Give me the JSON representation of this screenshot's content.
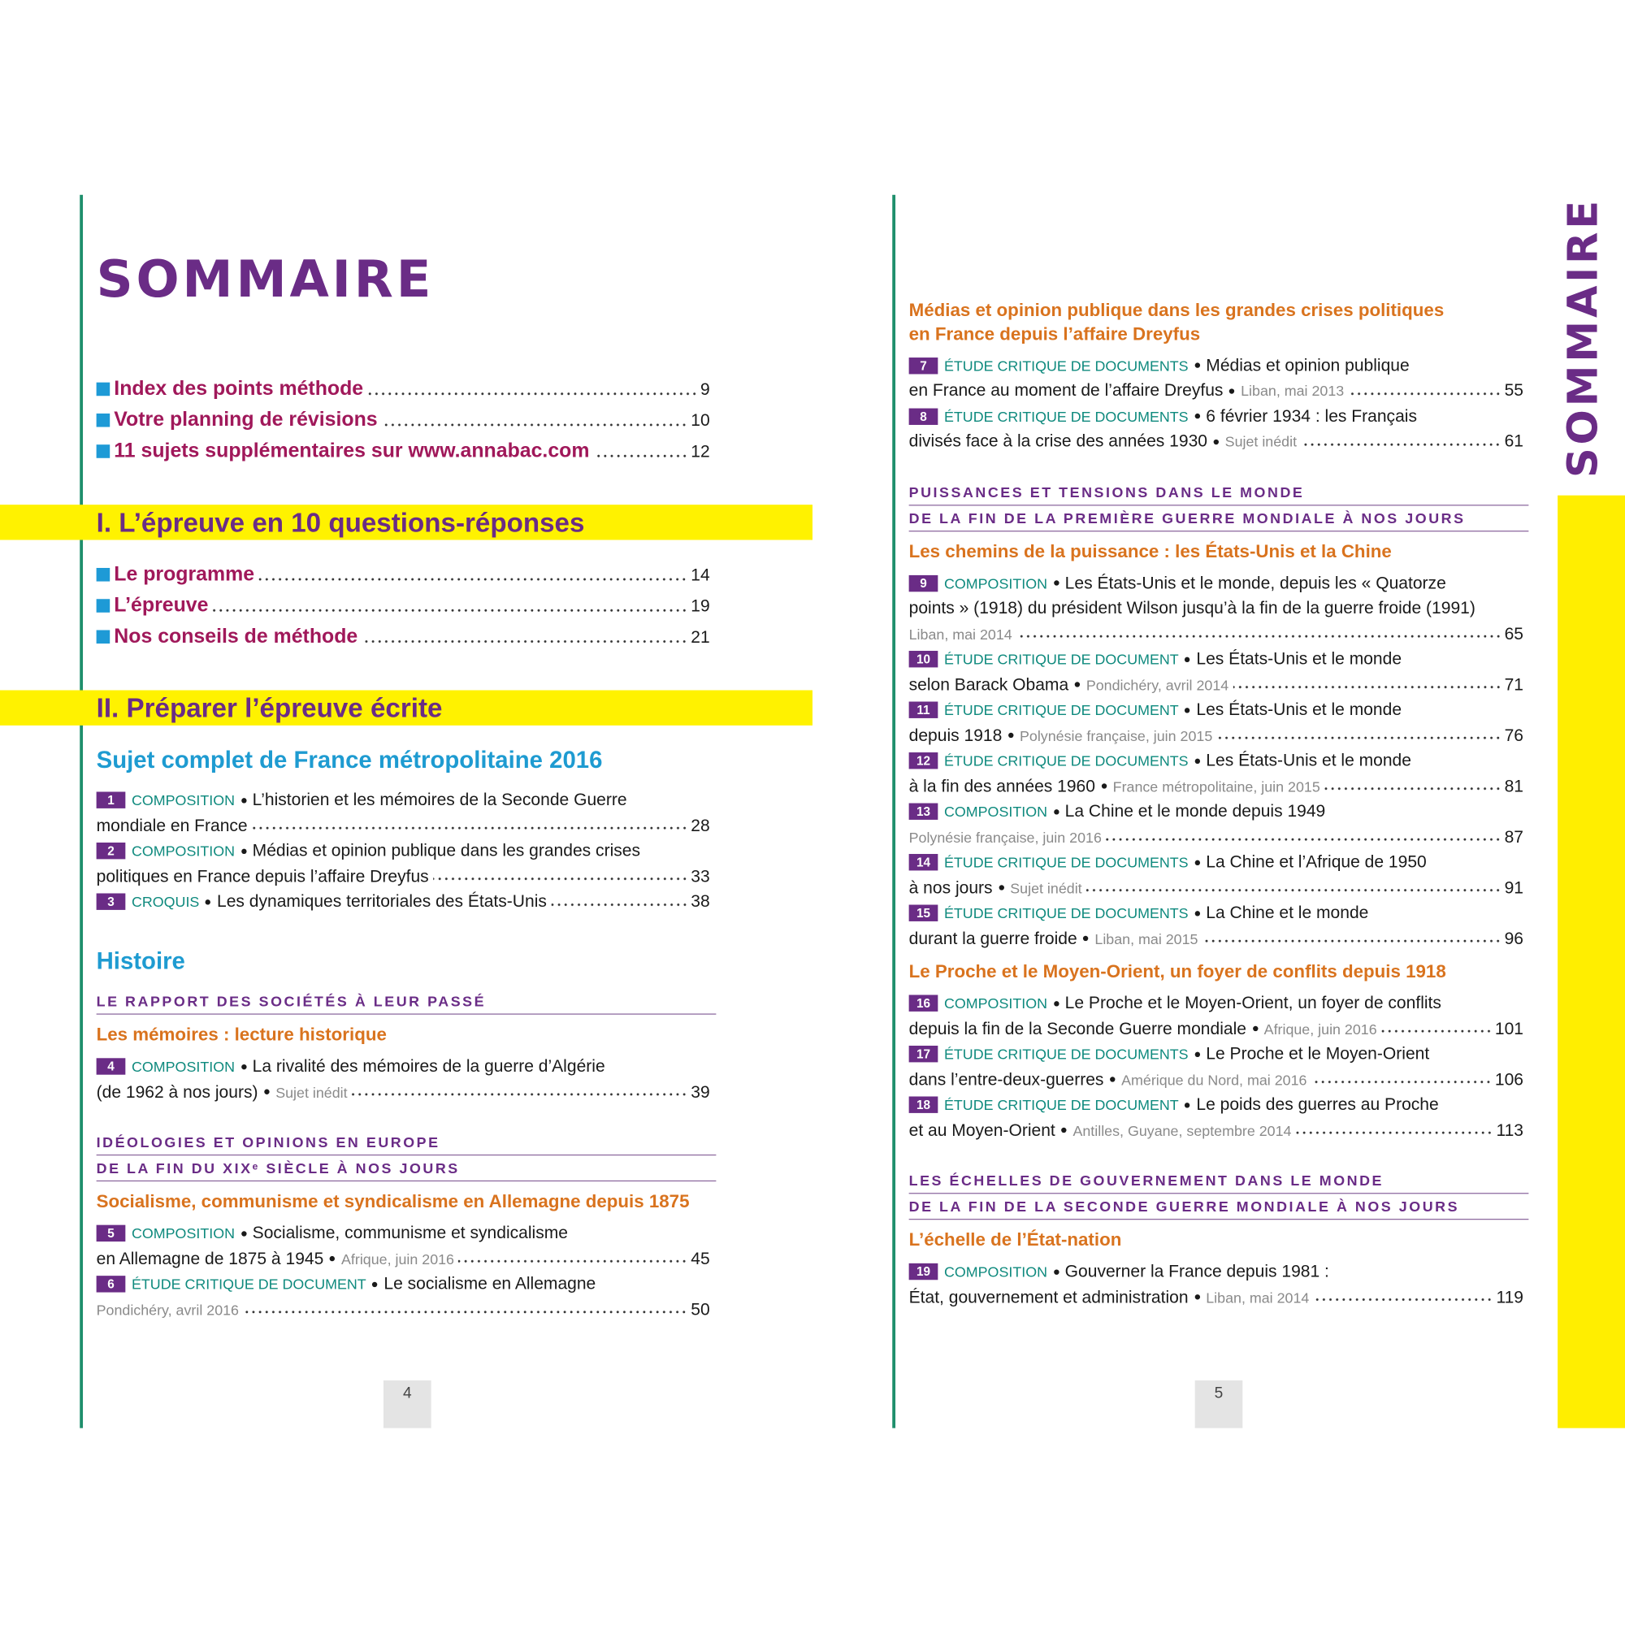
{
  "pages": [
    {
      "title": "SOMMAIRE",
      "number": 4,
      "blocks": [
        {
          "links": [
            {
              "label": "Index des points méthode",
              "page": 9
            },
            {
              "label": "Votre planning de révisions",
              "page": 10
            },
            {
              "label": "11 sujets supplémentaires sur www.annabac.com",
              "page": 12
            }
          ]
        },
        {
          "band": "I. L’épreuve en 10 questions-réponses"
        },
        {
          "links": [
            {
              "label": "Le programme",
              "page": 14
            },
            {
              "label": "L’épreuve",
              "page": 19
            },
            {
              "label": "Nos conseils de méthode",
              "page": 21
            }
          ]
        },
        {
          "band": "II. Préparer l’épreuve écrite"
        },
        {
          "heading": "Sujet complet de France métropolitaine 2016"
        },
        {
          "entries": [
            {
              "num": 1,
              "type": "COMPOSITION",
              "lines": [
                {
                  "text": "L’historien et les mémoires de la Seconde Guerre"
                },
                {
                  "text": "mondiale en France"
                }
              ],
              "page": 28
            },
            {
              "num": 2,
              "type": "COMPOSITION",
              "lines": [
                {
                  "text": "Médias et opinion publique dans les grandes crises"
                },
                {
                  "text": "politiques en France depuis l’affaire Dreyfus"
                }
              ],
              "page": 33
            },
            {
              "num": 3,
              "type": "CROQUIS",
              "lines": [
                {
                  "text": "Les dynamiques territoriales des États-Unis"
                }
              ],
              "page": 38
            }
          ]
        },
        {
          "heading": "Histoire"
        },
        {
          "theme": [
            "LE RAPPORT DES SOCIÉTÉS À LEUR PASSÉ"
          ]
        },
        {
          "subtitle": [
            "Les mémoires : lecture historique"
          ]
        },
        {
          "entries": [
            {
              "num": 4,
              "type": "COMPOSITION",
              "lines": [
                {
                  "text": "La rivalité des mémoires de la guerre d’Algérie"
                },
                {
                  "text": "(de 1962 à nos jours)",
                  "source": "Sujet inédit"
                }
              ],
              "page": 39
            }
          ]
        },
        {
          "theme": [
            "IDÉOLOGIES ET OPINIONS EN EUROPE",
            "DE LA FIN DU XIXᵉ SIÈCLE À NOS JOURS"
          ]
        },
        {
          "subtitle": [
            "Socialisme, communisme et syndicalisme en Allemagne depuis 1875"
          ]
        },
        {
          "entries": [
            {
              "num": 5,
              "type": "COMPOSITION",
              "lines": [
                {
                  "text": "Socialisme, communisme et syndicalisme"
                },
                {
                  "text": "en Allemagne de 1875 à 1945",
                  "source": "Afrique, juin 2016"
                }
              ],
              "page": 45
            },
            {
              "num": 6,
              "type": "ÉTUDE CRITIQUE DE DOCUMENT",
              "lines": [
                {
                  "text": "Le socialisme en Allemagne"
                },
                {
                  "source": "Pondichéry, avril 2016"
                }
              ],
              "page": 50
            }
          ]
        }
      ]
    },
    {
      "side_title": "SOMMAIRE",
      "number": 5,
      "blocks": [
        {
          "subtitle": [
            "Médias et opinion publique dans les grandes crises politiques",
            "en France depuis l’affaire Dreyfus"
          ]
        },
        {
          "entries": [
            {
              "num": 7,
              "type": "ÉTUDE CRITIQUE DE DOCUMENTS",
              "lines": [
                {
                  "text": "Médias et opinion publique"
                },
                {
                  "text": "en France au moment de l’affaire Dreyfus",
                  "source": "Liban, mai 2013"
                }
              ],
              "page": 55
            },
            {
              "num": 8,
              "type": "ÉTUDE CRITIQUE DE DOCUMENTS",
              "lines": [
                {
                  "text": "6 février 1934 : les Français"
                },
                {
                  "text": "divisés face à la crise des années 1930",
                  "source": "Sujet inédit"
                }
              ],
              "page": 61
            }
          ]
        },
        {
          "theme": [
            "PUISSANCES ET TENSIONS DANS LE MONDE",
            "DE LA FIN DE LA PREMIÈRE GUERRE MONDIALE À NOS JOURS"
          ]
        },
        {
          "subtitle": [
            "Les chemins de la puissance : les États-Unis et la Chine"
          ]
        },
        {
          "entries": [
            {
              "num": 9,
              "type": "COMPOSITION",
              "lines": [
                {
                  "text": "Les États-Unis et le monde, depuis les « Quatorze"
                },
                {
                  "text": "points » (1918) du président Wilson jusqu’à la fin de la guerre froide (1991)"
                },
                {
                  "source": "Liban, mai 2014"
                }
              ],
              "page": 65
            },
            {
              "num": 10,
              "type": "ÉTUDE CRITIQUE DE DOCUMENT",
              "lines": [
                {
                  "text": "Les États-Unis et le monde"
                },
                {
                  "text": "selon Barack Obama",
                  "source": "Pondichéry, avril 2014"
                }
              ],
              "page": 71
            },
            {
              "num": 11,
              "type": "ÉTUDE CRITIQUE DE DOCUMENT",
              "lines": [
                {
                  "text": "Les États-Unis et le monde"
                },
                {
                  "text": "depuis 1918",
                  "source": "Polynésie française, juin 2015"
                }
              ],
              "page": 76
            },
            {
              "num": 12,
              "type": "ÉTUDE CRITIQUE DE DOCUMENTS",
              "lines": [
                {
                  "text": "Les États-Unis et le monde"
                },
                {
                  "text": "à la fin des années 1960",
                  "source": "France métropolitaine, juin 2015"
                }
              ],
              "page": 81
            },
            {
              "num": 13,
              "type": "COMPOSITION",
              "lines": [
                {
                  "text": "La Chine et le monde depuis 1949"
                },
                {
                  "source": "Polynésie française, juin 2016"
                }
              ],
              "page": 87
            },
            {
              "num": 14,
              "type": "ÉTUDE CRITIQUE DE DOCUMENTS",
              "lines": [
                {
                  "text": "La Chine et l’Afrique de 1950"
                },
                {
                  "text": "à nos jours",
                  "source": "Sujet inédit"
                }
              ],
              "page": 91
            },
            {
              "num": 15,
              "type": "ÉTUDE CRITIQUE DE DOCUMENTS",
              "lines": [
                {
                  "text": "La Chine et le monde"
                },
                {
                  "text": "durant la guerre froide",
                  "source": "Liban, mai 2015"
                }
              ],
              "page": 96
            }
          ]
        },
        {
          "subtitle": [
            "Le Proche et le Moyen-Orient, un foyer de conflits depuis 1918"
          ]
        },
        {
          "entries": [
            {
              "num": 16,
              "type": "COMPOSITION",
              "lines": [
                {
                  "text": "Le Proche et le Moyen-Orient, un foyer de conflits"
                },
                {
                  "text": "depuis la fin de la Seconde Guerre mondiale",
                  "source": "Afrique, juin 2016"
                }
              ],
              "page": 101
            },
            {
              "num": 17,
              "type": "ÉTUDE CRITIQUE DE DOCUMENTS",
              "lines": [
                {
                  "text": "Le Proche et le Moyen-Orient"
                },
                {
                  "text": "dans l’entre-deux-guerres",
                  "source": "Amérique du Nord, mai 2016"
                }
              ],
              "page": 106
            },
            {
              "num": 18,
              "type": "ÉTUDE CRITIQUE DE DOCUMENT",
              "lines": [
                {
                  "text": "Le poids des guerres au Proche"
                },
                {
                  "text": "et au Moyen-Orient",
                  "source": "Antilles, Guyane, septembre 2014"
                }
              ],
              "page": 113
            }
          ]
        },
        {
          "theme": [
            "LES ÉCHELLES DE GOUVERNEMENT DANS LE MONDE",
            "DE LA FIN DE LA SECONDE GUERRE MONDIALE À NOS JOURS"
          ]
        },
        {
          "subtitle": [
            "L’échelle de l’État-nation"
          ]
        },
        {
          "entries": [
            {
              "num": 19,
              "type": "COMPOSITION",
              "lines": [
                {
                  "text": "Gouverner la France depuis 1981 :"
                },
                {
                  "text": "État, gouvernement et administration",
                  "source": "Liban, mai 2014"
                }
              ],
              "page": 119
            }
          ]
        }
      ]
    }
  ]
}
